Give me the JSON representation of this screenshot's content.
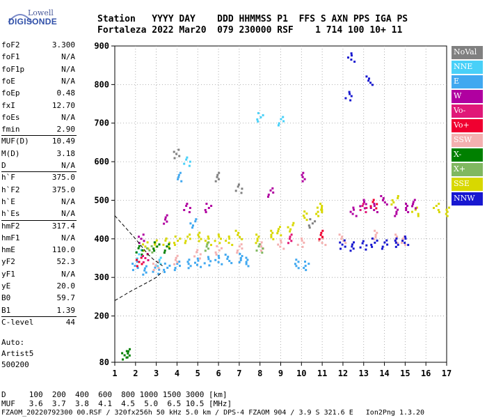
{
  "logo": {
    "brand_top": "Lowell",
    "brand_bottom": "DIGISONDE"
  },
  "header": {
    "line1": "Station   YYYY DAY    DDD HHMMSS P1  FFS S AXN PPS IGA PS",
    "line2": "Fortaleza 2022 Mar20  079 230000 RSF    1 714 100 10+ 11"
  },
  "params": [
    {
      "label": "foF2",
      "value": "3.300"
    },
    {
      "label": "foF1",
      "value": "N/A"
    },
    {
      "label": "foF1p",
      "value": "N/A"
    },
    {
      "label": "foE",
      "value": "N/A"
    },
    {
      "label": "foEp",
      "value": "0.48"
    },
    {
      "label": "fxI",
      "value": "12.70"
    },
    {
      "label": "foEs",
      "value": "N/A"
    },
    {
      "label": "fmin",
      "value": "2.90"
    },
    {
      "label": "MUF(D)",
      "value": "10.49"
    },
    {
      "label": "M(D)",
      "value": "3.18"
    },
    {
      "label": "D",
      "value": "N/A"
    },
    {
      "label": "h`F",
      "value": "375.0"
    },
    {
      "label": "h`F2",
      "value": "375.0"
    },
    {
      "label": "h`E",
      "value": "N/A"
    },
    {
      "label": "h`Es",
      "value": "N/A"
    },
    {
      "label": "hmF2",
      "value": "317.4"
    },
    {
      "label": "hmF1",
      "value": "N/A"
    },
    {
      "label": "hmE",
      "value": "110.0"
    },
    {
      "label": "yF2",
      "value": "52.3"
    },
    {
      "label": "yF1",
      "value": "N/A"
    },
    {
      "label": "yE",
      "value": "20.0"
    },
    {
      "label": "B0",
      "value": "59.7"
    },
    {
      "label": "B1",
      "value": "1.39"
    },
    {
      "label": "C-level",
      "value": "44"
    }
  ],
  "auto": {
    "line1": "Auto:",
    "line2": "Artist5",
    "line3": "500200"
  },
  "legend": [
    {
      "label": "NoVal",
      "color": "#808080"
    },
    {
      "label": "NNE",
      "color": "#48d0f8"
    },
    {
      "label": "E",
      "color": "#40a8f0"
    },
    {
      "label": "W",
      "color": "#b000a0"
    },
    {
      "label": "Vo-",
      "color": "#e01878"
    },
    {
      "label": "Vo+",
      "color": "#f00030"
    },
    {
      "label": "SSW",
      "color": "#f4b0b0"
    },
    {
      "label": "X-",
      "color": "#008000"
    },
    {
      "label": "X+",
      "color": "#80b860"
    },
    {
      "label": "SSE",
      "color": "#d8d800"
    },
    {
      "label": "NNW",
      "color": "#1818d0"
    }
  ],
  "footer": {
    "d_line": "D     100  200  400  600  800 1000 1500 3000 [km]",
    "muf_line": "MUF   3.6  3.7  3.8  4.1  4.5  5.0  6.5 10.5 [MHz]",
    "file_line": "FZAOM_20220792300 00.RSF / 320fx256h 50 kHz 5.0 km / DPS-4 FZAOM 904 / 3.9 S 321.6 E   Ion2Png 1.3.20"
  },
  "chart_data": {
    "type": "scatter",
    "title": "",
    "xlabel": "",
    "ylabel": "",
    "xlim": [
      1,
      17
    ],
    "ylim": [
      80,
      900
    ],
    "x_ticks": [
      1,
      2,
      3,
      4,
      5,
      6,
      7,
      8,
      9,
      10,
      11,
      12,
      13,
      14,
      15,
      16,
      17
    ],
    "y_ticks": [
      80,
      200,
      300,
      400,
      500,
      600,
      700,
      800,
      900
    ],
    "grid": true,
    "legend_position": "right",
    "series": [
      {
        "name": "E",
        "color": "#40a8f0",
        "points": [
          [
            2.0,
            330
          ],
          [
            2.5,
            318
          ],
          [
            3.0,
            320
          ],
          [
            3.5,
            325
          ],
          [
            4.0,
            330
          ],
          [
            4.5,
            335
          ],
          [
            5.0,
            338
          ],
          [
            5.5,
            342
          ],
          [
            6.0,
            345
          ],
          [
            6.5,
            348
          ],
          [
            7.0,
            350
          ],
          [
            7.3,
            340
          ],
          [
            4.2,
            560
          ],
          [
            4.8,
            440
          ],
          [
            9.8,
            335
          ],
          [
            10.2,
            330
          ]
        ]
      },
      {
        "name": "NNE",
        "color": "#48d0f8",
        "points": [
          [
            2.2,
            360
          ],
          [
            3.2,
            340
          ],
          [
            4.5,
            600
          ],
          [
            8.0,
            715
          ],
          [
            9.0,
            705
          ]
        ]
      },
      {
        "name": "SSE",
        "color": "#d8d800",
        "points": [
          [
            2.5,
            380
          ],
          [
            3.0,
            385
          ],
          [
            3.5,
            390
          ],
          [
            4.0,
            395
          ],
          [
            4.5,
            400
          ],
          [
            5.0,
            405
          ],
          [
            5.5,
            395
          ],
          [
            6.0,
            400
          ],
          [
            6.5,
            395
          ],
          [
            7.0,
            410
          ],
          [
            7.8,
            400
          ],
          [
            8.5,
            410
          ],
          [
            9.0,
            420
          ],
          [
            9.5,
            430
          ],
          [
            10.2,
            460
          ],
          [
            10.8,
            470
          ],
          [
            11.0,
            480
          ],
          [
            14.5,
            500
          ],
          [
            15.5,
            470
          ],
          [
            16.5,
            480
          ],
          [
            17.0,
            470
          ]
        ]
      },
      {
        "name": "SSW",
        "color": "#f4b0b0",
        "points": [
          [
            3.0,
            330
          ],
          [
            4.0,
            345
          ],
          [
            5.0,
            360
          ],
          [
            6.0,
            370
          ],
          [
            7.0,
            375
          ],
          [
            8.0,
            380
          ],
          [
            9.0,
            385
          ],
          [
            10.0,
            390
          ],
          [
            11.0,
            395
          ],
          [
            12.0,
            400
          ],
          [
            13.5,
            410
          ],
          [
            14.5,
            400
          ],
          [
            15.0,
            395
          ]
        ]
      },
      {
        "name": "W",
        "color": "#b000a0",
        "points": [
          [
            2.3,
            400
          ],
          [
            3.5,
            450
          ],
          [
            4.5,
            480
          ],
          [
            5.5,
            480
          ],
          [
            8.5,
            520
          ],
          [
            10.0,
            560
          ],
          [
            12.5,
            470
          ],
          [
            13.0,
            490
          ],
          [
            13.5,
            480
          ],
          [
            14.0,
            500
          ],
          [
            14.5,
            470
          ],
          [
            15.0,
            480
          ],
          [
            15.5,
            490
          ]
        ]
      },
      {
        "name": "NNW",
        "color": "#1818d0",
        "points": [
          [
            12.0,
            385
          ],
          [
            12.5,
            380
          ],
          [
            13.0,
            383
          ],
          [
            13.5,
            390
          ],
          [
            14.0,
            385
          ],
          [
            14.5,
            390
          ],
          [
            15.0,
            395
          ],
          [
            12.3,
            770
          ],
          [
            12.4,
            870
          ],
          [
            13.3,
            810
          ]
        ]
      },
      {
        "name": "X-",
        "color": "#008000",
        "points": [
          [
            1.5,
            98
          ],
          [
            1.7,
            103
          ],
          [
            2.2,
            370
          ],
          [
            3.0,
            380
          ],
          [
            3.5,
            375
          ]
        ]
      },
      {
        "name": "X+",
        "color": "#80b860",
        "points": [
          [
            2.7,
            370
          ],
          [
            5.5,
            380
          ],
          [
            8.0,
            375
          ]
        ]
      },
      {
        "name": "Vo-",
        "color": "#e01878",
        "points": [
          [
            2.5,
            350
          ],
          [
            9.5,
            400
          ],
          [
            13.0,
            480
          ]
        ]
      },
      {
        "name": "Vo+",
        "color": "#f00030",
        "points": [
          [
            2.2,
            340
          ],
          [
            11.0,
            410
          ],
          [
            13.5,
            490
          ]
        ]
      },
      {
        "name": "NoVal",
        "color": "#808080",
        "points": [
          [
            4.0,
            620
          ],
          [
            6.0,
            560
          ],
          [
            7.0,
            530
          ],
          [
            10.5,
            440
          ]
        ]
      }
    ],
    "profile_curve": {
      "name": "",
      "style": "dashed",
      "color": "#000000",
      "points": [
        [
          1.0,
          460
        ],
        [
          1.5,
          430
        ],
        [
          2.0,
          400
        ],
        [
          2.3,
          380
        ],
        [
          2.6,
          360
        ],
        [
          2.9,
          345
        ],
        [
          3.3,
          330
        ]
      ],
      "lower_branch": [
        [
          1.0,
          240
        ],
        [
          1.8,
          265
        ],
        [
          2.5,
          285
        ],
        [
          3.0,
          300
        ],
        [
          3.3,
          315
        ]
      ]
    }
  }
}
